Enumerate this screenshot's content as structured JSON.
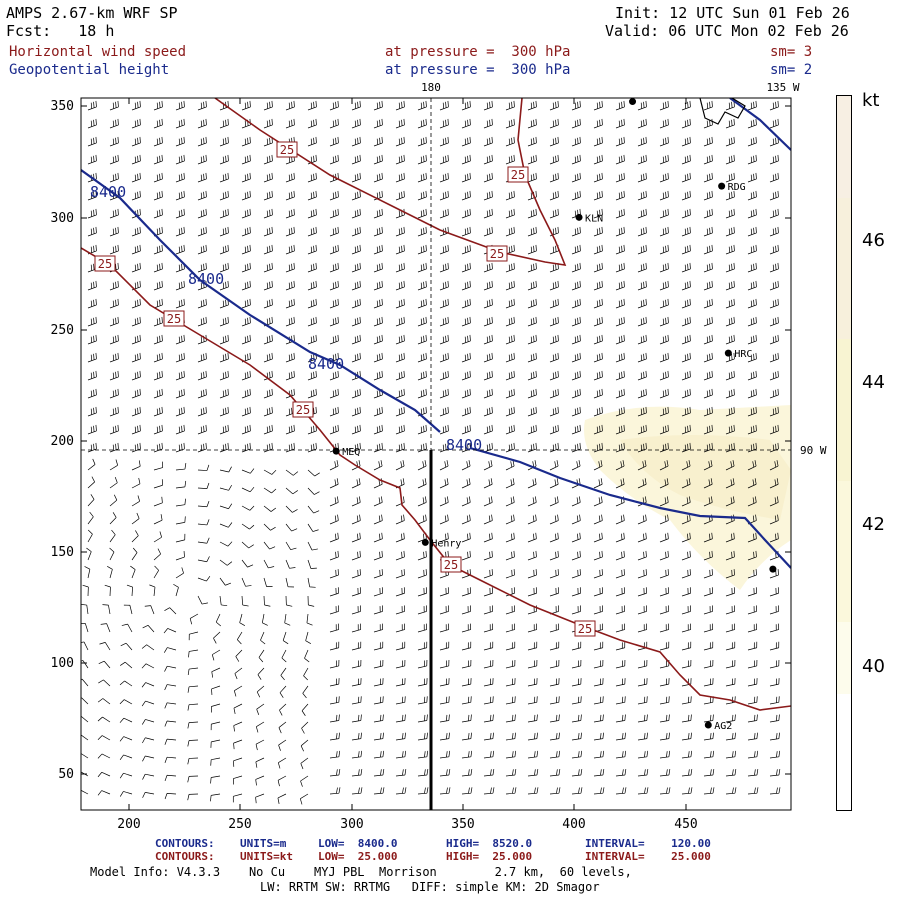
{
  "header": {
    "model": "AMPS 2.67-km WRF SP",
    "fcst": "Fcst:   18 h",
    "init": "Init: 12 UTC Sun 01 Feb 26",
    "valid": "Valid: 06 UTC Mon 02 Feb 26",
    "field1": "Horizontal wind speed",
    "field2": "Geopotential height",
    "pressure1": "at pressure =  300 hPa",
    "pressure2": "at pressure =  300 hPa",
    "sm1": "sm= 3",
    "sm2": "sm= 2"
  },
  "map": {
    "lon_labels": {
      "top_center": "180",
      "top_right": "135 W",
      "right": "90 W"
    },
    "x_ticks": [
      "200",
      "250",
      "300",
      "350",
      "400",
      "450"
    ],
    "y_ticks": [
      "350",
      "300",
      "250",
      "200",
      "150",
      "100",
      "50"
    ],
    "stations": [
      {
        "name": "",
        "x": 426,
        "y": 352
      },
      {
        "name": "RDG",
        "x": 466,
        "y": 314
      },
      {
        "name": "KLN",
        "x": 402,
        "y": 300
      },
      {
        "name": "HRC",
        "x": 469,
        "y": 239
      },
      {
        "name": "MEQ",
        "x": 293,
        "y": 195
      },
      {
        "name": "Henry",
        "x": 333,
        "y": 154
      },
      {
        "name": "",
        "x": 489,
        "y": 142
      },
      {
        "name": "AG2",
        "x": 460,
        "y": 72
      }
    ],
    "height_contour_labels": [
      "8400",
      "8400",
      "8400",
      "8400"
    ],
    "speed_contour_labels": [
      "25",
      "25",
      "25",
      "25",
      "25",
      "25",
      "25",
      "25"
    ]
  },
  "colorbar": {
    "unit": "kt",
    "labels": [
      "46",
      "44",
      "42",
      "40"
    ],
    "colors": [
      "#f7efe3",
      "#f7f0dc",
      "#f8f4d2",
      "#fbf8dc",
      "#fdfcec",
      "#ffffff"
    ]
  },
  "footer": {
    "contours_height": {
      "label": "CONTOURS:",
      "units": "UNITS=m",
      "low": "LOW=  8400.0",
      "high": "HIGH=  8520.0",
      "interval": "INTERVAL=    120.00"
    },
    "contours_speed": {
      "label": "CONTOURS:",
      "units": "UNITS=kt",
      "low": "LOW=  25.000",
      "high": "HIGH=  25.000",
      "interval": "INTERVAL=    25.000"
    },
    "model_info": "Model Info: V4.3.3    No Cu    MYJ PBL  Morrison        2.7 km,  60 levels,",
    "model_info2": "LW: RRTM SW: RRTMG   DIFF: simple KM: 2D Smagor"
  },
  "colors": {
    "height_contour": "#1a2a8c",
    "speed_contour": "#8b1a1a",
    "shade": "#faf3cf"
  }
}
